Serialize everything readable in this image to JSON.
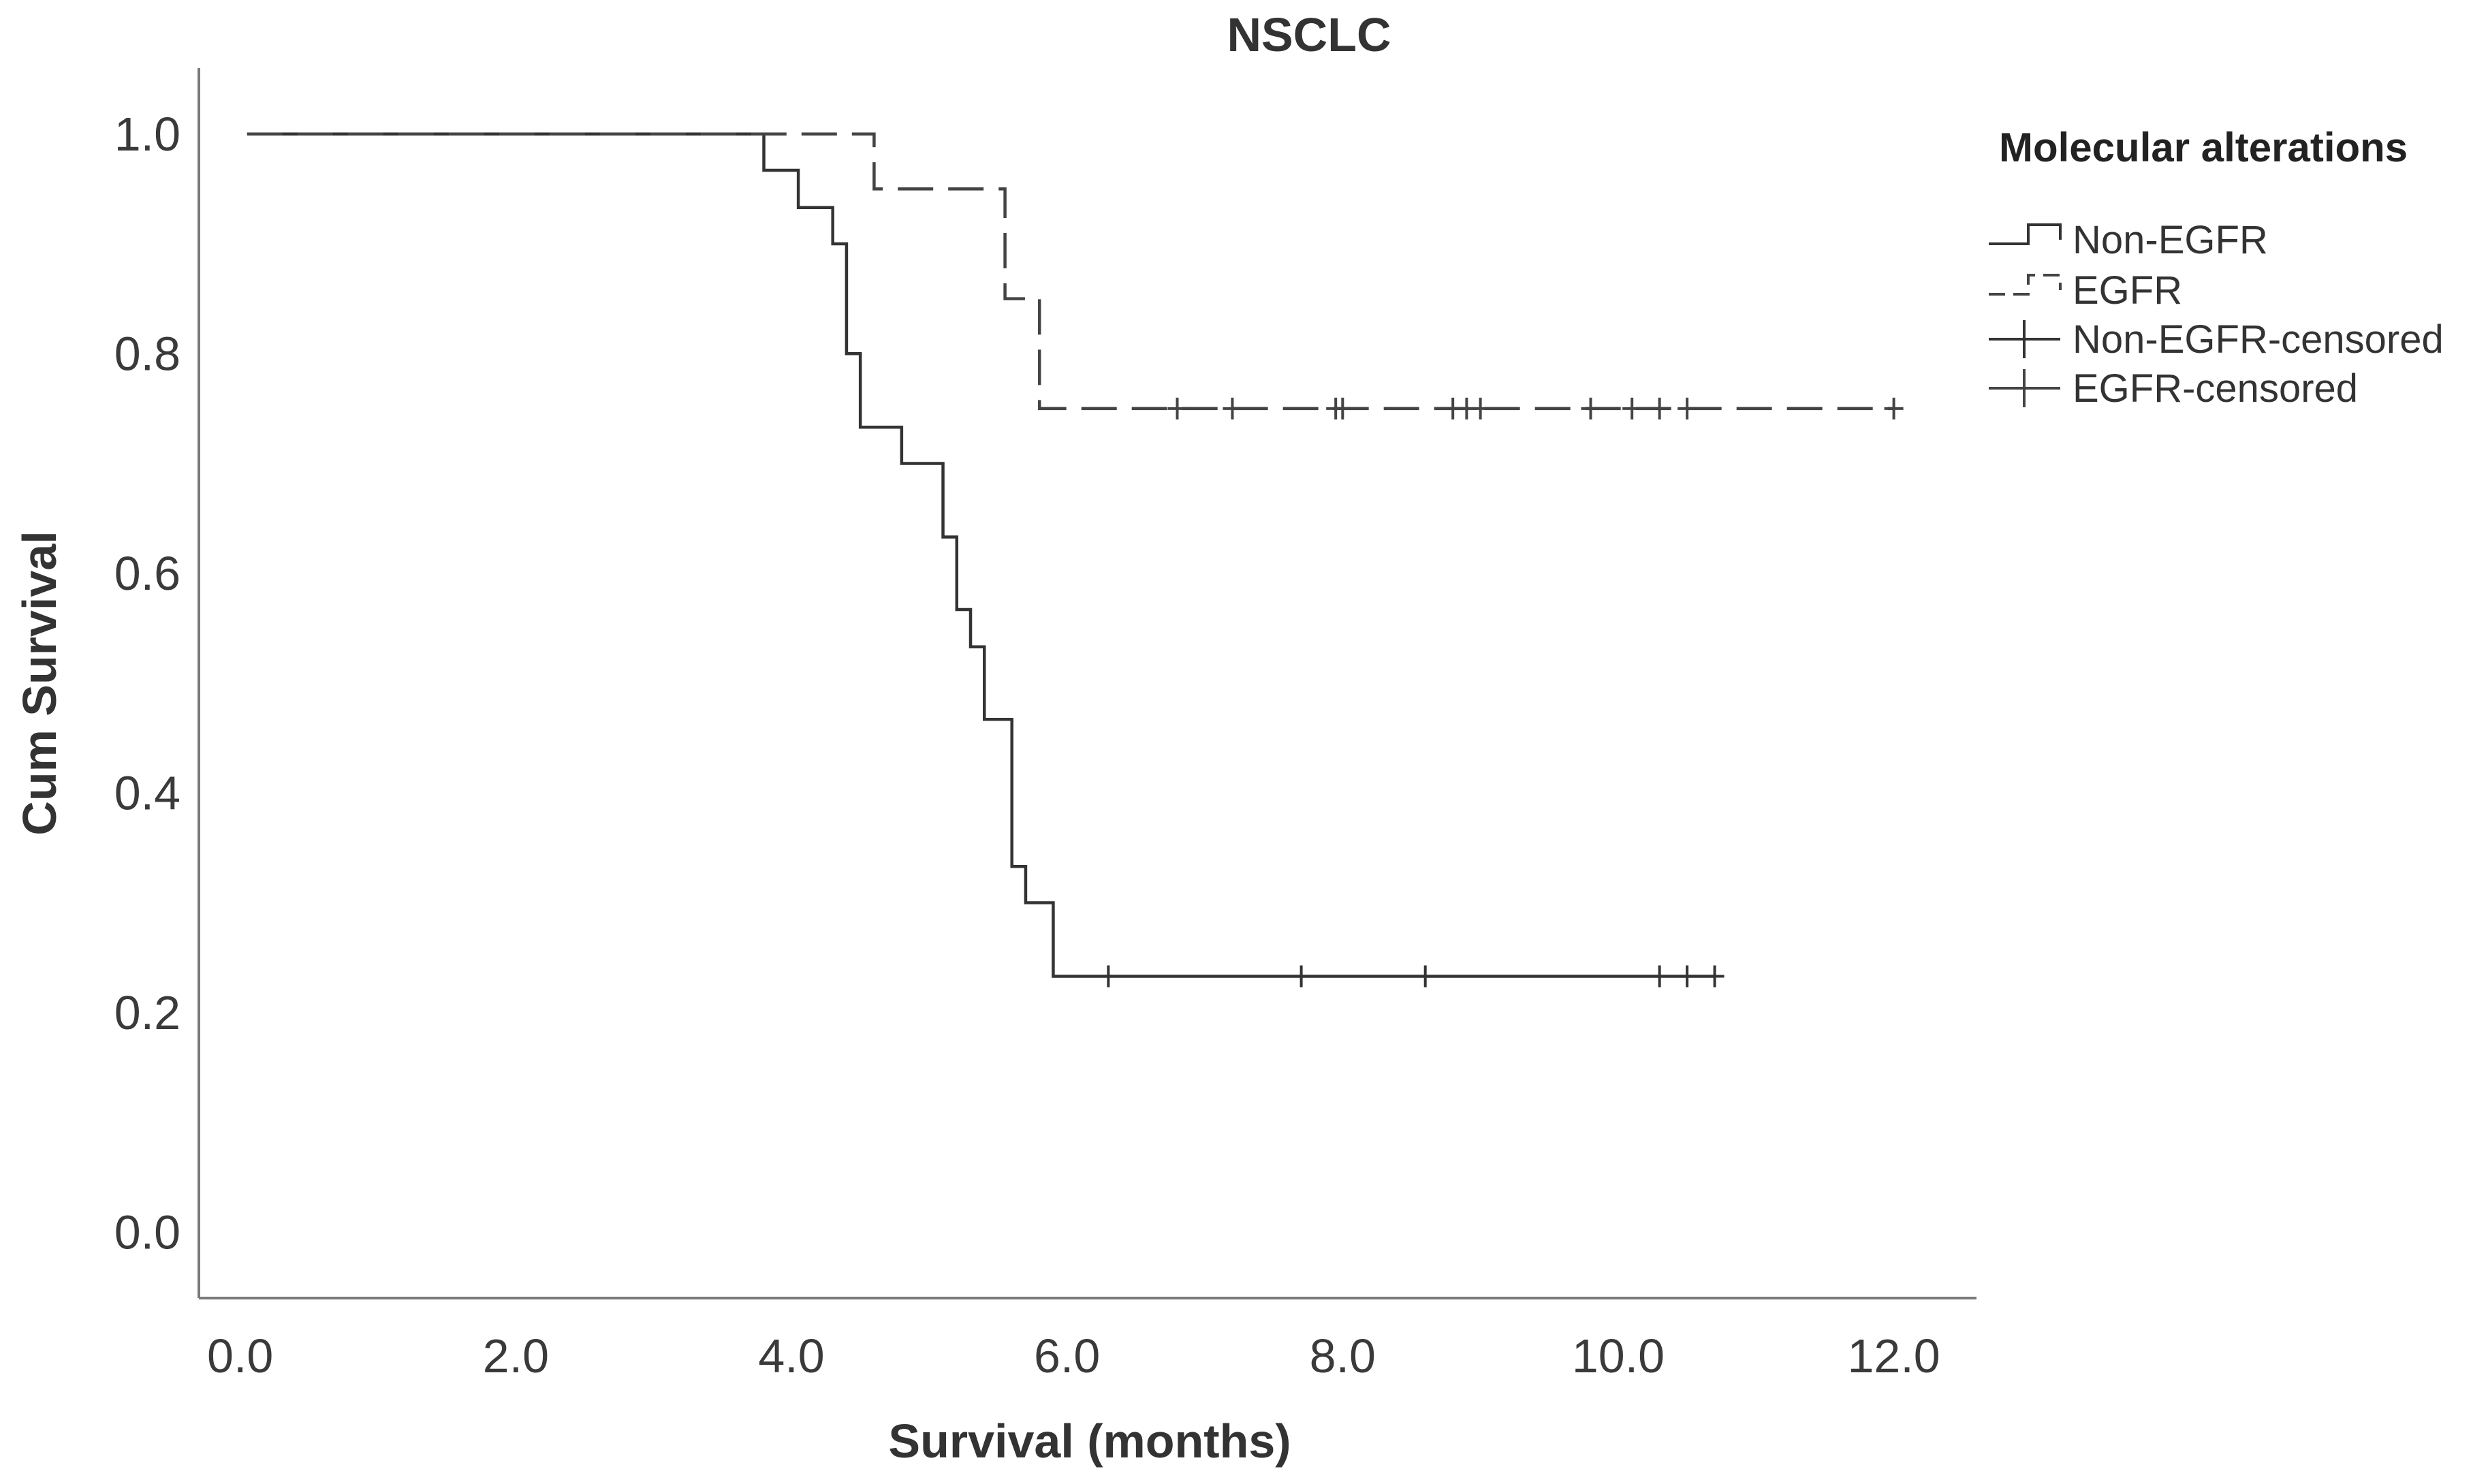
{
  "chart_data": {
    "type": "line",
    "subtype": "kaplan-meier",
    "title": "NSCLC",
    "xlabel": "Survival (months)",
    "ylabel": "Cum Survival",
    "xlim": [
      -0.3,
      12.6
    ],
    "ylim": [
      -0.06,
      1.06
    ],
    "x_ticks": [
      0,
      2,
      4,
      6,
      8,
      10,
      12
    ],
    "x_tick_labels": [
      "0.0",
      "2.0",
      "4.0",
      "6.0",
      "8.0",
      "10.0",
      "12.0"
    ],
    "y_ticks": [
      0,
      0.2,
      0.4,
      0.6,
      0.8,
      1.0
    ],
    "y_tick_labels": [
      "0.0",
      "0.2",
      "0.4",
      "0.6",
      "0.8",
      "1.0"
    ],
    "grid": false,
    "legend": {
      "title": "Molecular alterations",
      "placement": "right",
      "entries": [
        "Non-EGFR",
        "EGFR",
        "Non-EGFR-censored",
        "EGFR-censored"
      ]
    },
    "series": [
      {
        "name": "Non-EGFR",
        "style": "solid",
        "color": "#333333",
        "steps": [
          [
            0.05,
            1.0
          ],
          [
            3.8,
            0.967
          ],
          [
            4.05,
            0.933
          ],
          [
            4.3,
            0.9
          ],
          [
            4.4,
            0.8
          ],
          [
            4.5,
            0.733
          ],
          [
            4.8,
            0.7
          ],
          [
            5.1,
            0.633
          ],
          [
            5.2,
            0.567
          ],
          [
            5.3,
            0.533
          ],
          [
            5.4,
            0.467
          ],
          [
            5.6,
            0.333
          ],
          [
            5.7,
            0.3
          ],
          [
            5.9,
            0.233
          ],
          [
            10.7,
            0.233
          ]
        ],
        "censored": [
          6.3,
          7.7,
          8.6,
          10.3,
          10.5,
          10.7
        ]
      },
      {
        "name": "EGFR",
        "style": "dashed",
        "color": "#444444",
        "steps": [
          [
            0.05,
            1.0
          ],
          [
            4.6,
            0.95
          ],
          [
            5.55,
            0.85
          ],
          [
            5.8,
            0.75
          ],
          [
            12.0,
            0.75
          ]
        ],
        "censored": [
          6.8,
          7.2,
          7.95,
          8.0,
          8.8,
          8.9,
          9.0,
          9.8,
          10.1,
          10.3,
          10.5,
          12.0
        ]
      }
    ]
  }
}
